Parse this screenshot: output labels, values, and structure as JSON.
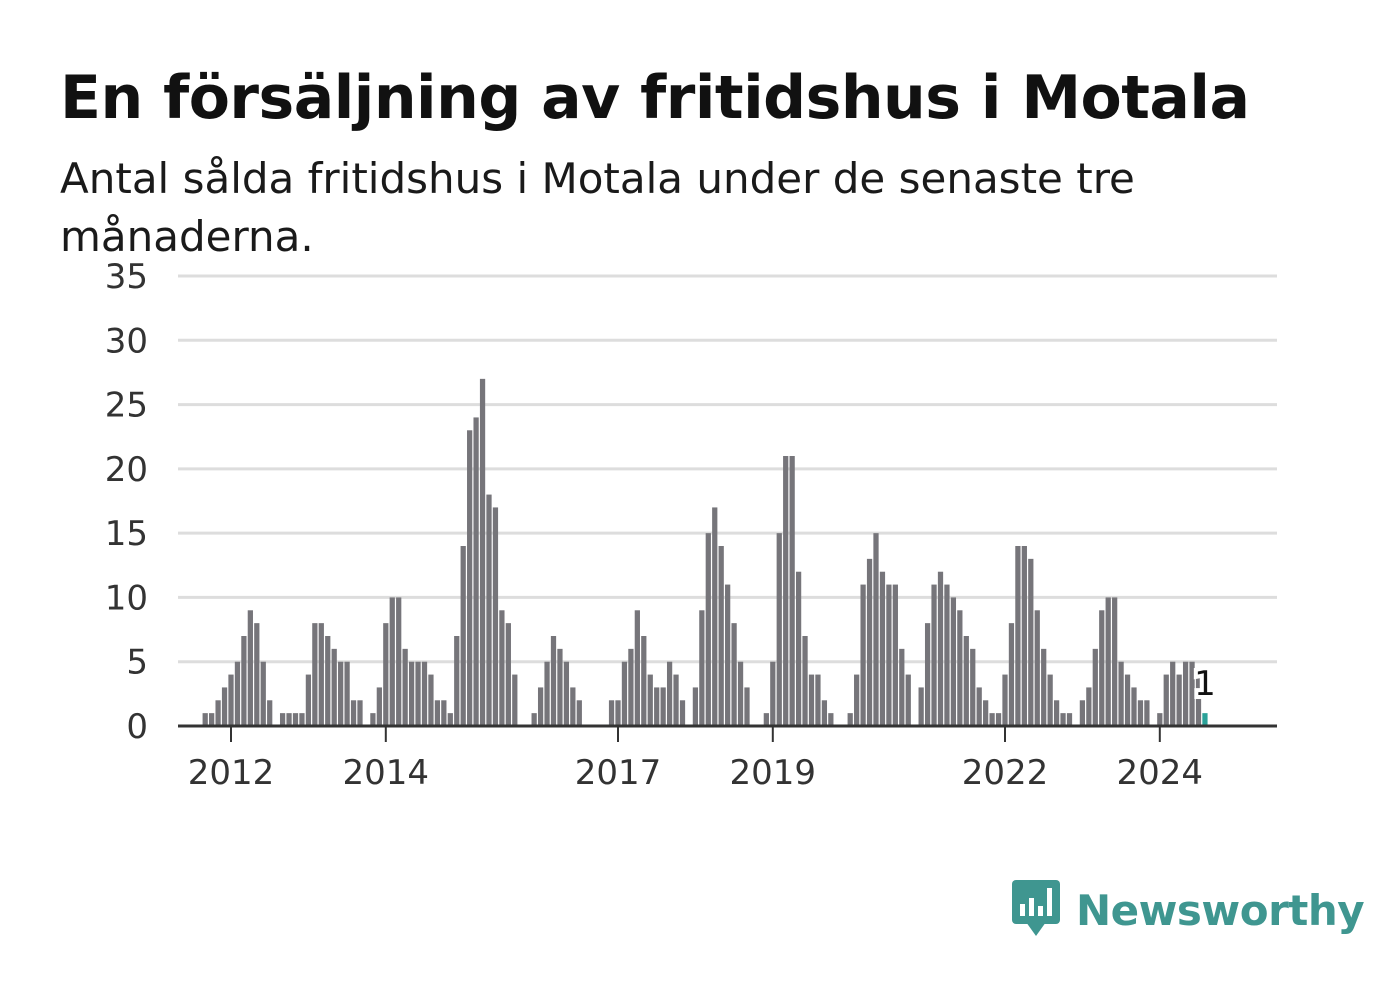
{
  "title": "En försäljning av fritidshus i Motala",
  "subtitle": "Antal sålda fritidshus i Motala under de senaste tre månaderna.",
  "brand": {
    "name": "Newsworthy",
    "logo_icon": "newsworthy-logo-icon",
    "color": "#3f9690"
  },
  "colors": {
    "bar": "#76757a",
    "highlight": "#2aa198",
    "grid": "#dddddd",
    "axis": "#333333"
  },
  "chart_data": {
    "type": "bar",
    "start": "2011-01",
    "xlabel": "",
    "ylabel": "",
    "ylim": [
      0,
      35
    ],
    "yticks": [
      0,
      5,
      10,
      15,
      20,
      25,
      30,
      35
    ],
    "xticks": [
      {
        "label": "2012",
        "month": "2012-01"
      },
      {
        "label": "2014",
        "month": "2014-01"
      },
      {
        "label": "2017",
        "month": "2017-01"
      },
      {
        "label": "2019",
        "month": "2019-01"
      },
      {
        "label": "2022",
        "month": "2022-01"
      },
      {
        "label": "2024",
        "month": "2024-01"
      }
    ],
    "grid": true,
    "values": [
      0,
      0,
      0,
      0,
      0,
      0,
      0,
      0,
      1,
      1,
      2,
      3,
      4,
      5,
      7,
      9,
      8,
      5,
      2,
      0,
      1,
      1,
      1,
      1,
      4,
      8,
      8,
      7,
      6,
      5,
      5,
      2,
      2,
      0,
      1,
      3,
      8,
      10,
      10,
      6,
      5,
      5,
      5,
      4,
      2,
      2,
      1,
      7,
      14,
      23,
      24,
      27,
      18,
      17,
      9,
      8,
      4,
      0,
      0,
      1,
      3,
      5,
      7,
      6,
      5,
      3,
      2,
      0,
      0,
      0,
      0,
      2,
      2,
      5,
      6,
      9,
      7,
      4,
      3,
      3,
      5,
      4,
      2,
      0,
      3,
      9,
      15,
      17,
      14,
      11,
      8,
      5,
      3,
      0,
      0,
      1,
      5,
      15,
      21,
      21,
      12,
      7,
      4,
      4,
      2,
      1,
      0,
      0,
      1,
      4,
      11,
      13,
      15,
      12,
      11,
      11,
      6,
      4,
      0,
      3,
      8,
      11,
      12,
      11,
      10,
      9,
      7,
      6,
      3,
      2,
      1,
      1,
      4,
      8,
      14,
      14,
      13,
      9,
      6,
      4,
      2,
      1,
      1,
      0,
      2,
      3,
      6,
      9,
      10,
      10,
      5,
      4,
      3,
      2,
      2,
      0,
      1,
      4,
      5,
      4,
      5,
      5,
      4,
      1
    ],
    "highlight_last": 1,
    "last_value_label": "1"
  }
}
